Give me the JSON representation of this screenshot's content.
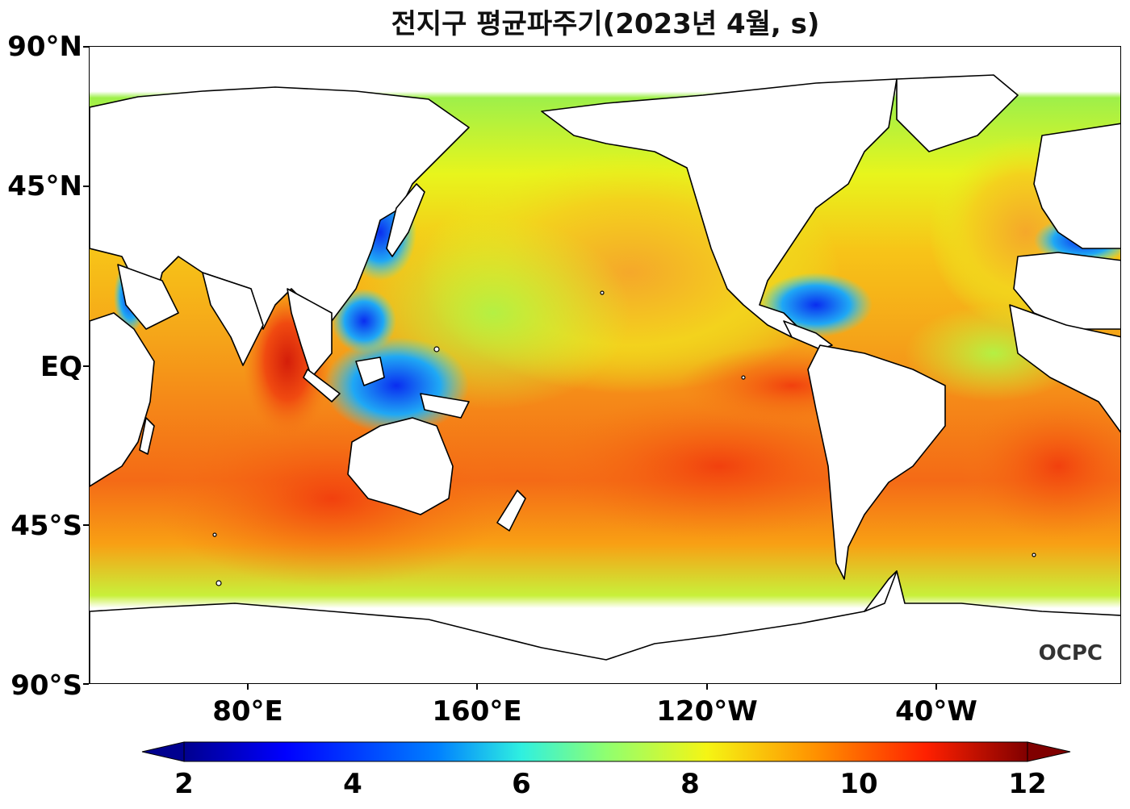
{
  "title": "전지구 평균파주기(2023년 4월, s)",
  "lat_labels": [
    "90°N",
    "45°N",
    "EQ",
    "45°S",
    "90°S"
  ],
  "lon_labels": [
    "80°E",
    "160°E",
    "120°W",
    "40°W"
  ],
  "colorbar": {
    "ticks": [
      "2",
      "4",
      "6",
      "8",
      "10",
      "12"
    ],
    "min": 2,
    "max": 12,
    "extend": "both",
    "colormap": "jet"
  },
  "logo_text": "OCPC",
  "colors": {
    "land": "#ffffff",
    "coast": "#000000"
  }
}
